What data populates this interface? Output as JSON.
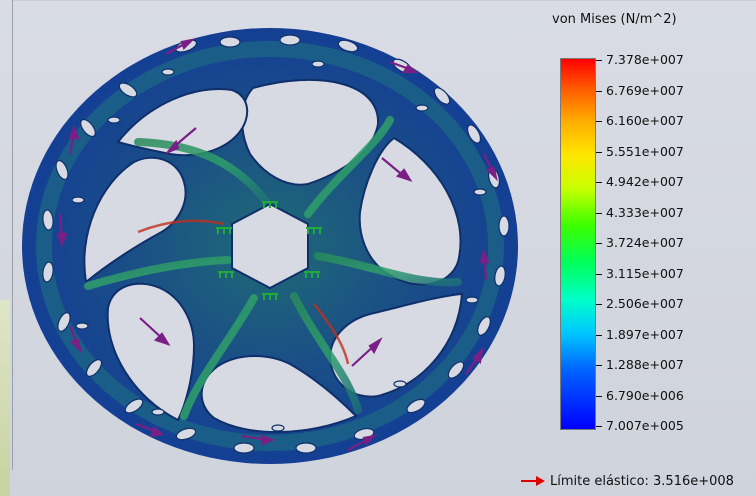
{
  "legend": {
    "title": "von Mises (N/m^2)",
    "ticks": [
      "7.378e+007",
      "6.769e+007",
      "6.160e+007",
      "5.551e+007",
      "4.942e+007",
      "4.333e+007",
      "3.724e+007",
      "3.115e+007",
      "2.506e+007",
      "1.897e+007",
      "1.288e+007",
      "6.790e+006",
      "7.007e+005"
    ],
    "colors": {
      "max": "#ff0000",
      "mid": "#3cff00",
      "min": "#0000ff"
    }
  },
  "yield": {
    "label": "Límite elástico: 3.516e+008",
    "arrow_color": "#e00000"
  },
  "model": {
    "icon": "brake-disc-stress-plot",
    "fixture_color": "#1faa3a",
    "load_arrow_color": "#7a1f86"
  }
}
